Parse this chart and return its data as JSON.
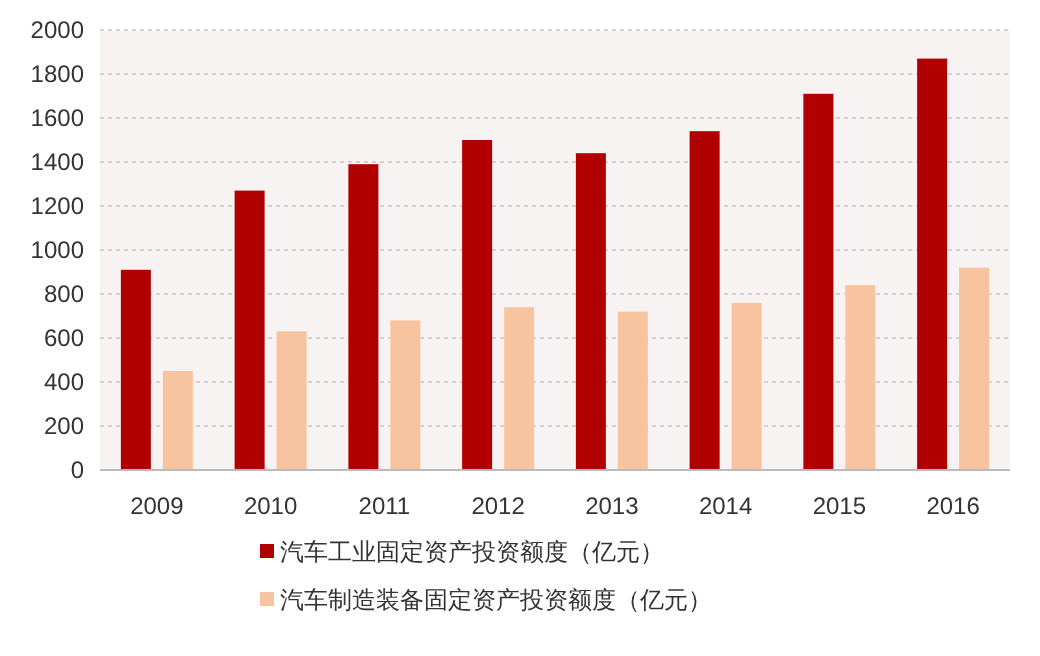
{
  "chart_data": {
    "type": "bar",
    "categories": [
      "2009",
      "2010",
      "2011",
      "2012",
      "2013",
      "2014",
      "2015",
      "2016"
    ],
    "series": [
      {
        "name": "汽车工业固定资产投资额度（亿元）",
        "color": "#b00000",
        "values": [
          910,
          1270,
          1390,
          1500,
          1440,
          1540,
          1710,
          1870
        ]
      },
      {
        "name": "汽车制造装备固定资产投资额度（亿元）",
        "color": "#f8c4a0",
        "values": [
          450,
          630,
          680,
          740,
          720,
          760,
          840,
          920
        ]
      }
    ],
    "ylim": [
      0,
      2000
    ],
    "yticks": [
      0,
      200,
      400,
      600,
      800,
      1000,
      1200,
      1400,
      1600,
      1800,
      2000
    ],
    "grid": "y",
    "legend": "bottom"
  }
}
